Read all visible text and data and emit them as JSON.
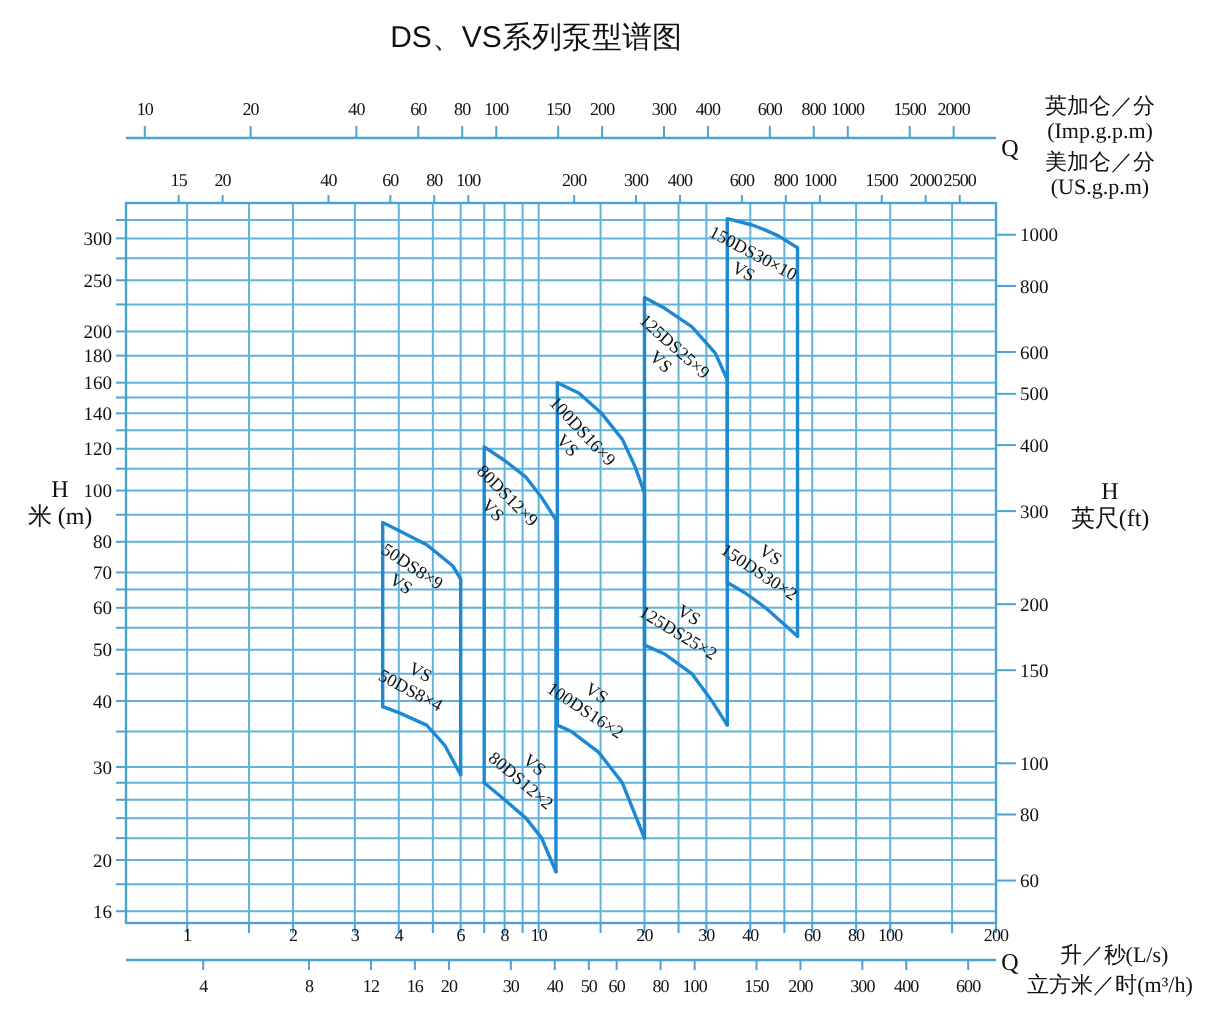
{
  "chart_data": {
    "type": "line",
    "title": "DS、VS系列泵型谱图",
    "xlabel": "升／秒(L/s)",
    "x2label": "美加仑／分\n(US.g.p.m)",
    "ylabel": "H\n米 (m)",
    "y2label": "H\n英尺(ft)",
    "log": "xy",
    "grid": true,
    "xlim": [
      0.67,
      200
    ],
    "xticks": [
      1,
      {
        "value": 1.5,
        "label": null
      },
      2,
      3,
      4,
      {
        "value": 5,
        "label": null
      },
      6,
      {
        "value": 7,
        "label": null
      },
      8,
      {
        "value": 9,
        "label": null
      },
      10,
      {
        "value": 15,
        "label": null
      },
      20,
      {
        "value": 25,
        "label": null
      },
      30,
      40,
      {
        "value": 50,
        "label": null
      },
      60,
      80,
      100,
      {
        "value": 150,
        "label": null
      },
      200
    ],
    "ylim": [
      15.2,
      350
    ],
    "yticks": [
      16,
      {
        "value": 18,
        "label": null
      },
      20,
      {
        "value": 22,
        "label": null
      },
      {
        "value": 24,
        "label": null
      },
      {
        "value": 26,
        "label": null
      },
      {
        "value": 28,
        "label": null
      },
      30,
      {
        "value": 35,
        "label": null
      },
      40,
      {
        "value": 45,
        "label": null
      },
      50,
      {
        "value": 55,
        "label": null
      },
      60,
      {
        "value": 65,
        "label": null
      },
      70,
      80,
      {
        "value": 90,
        "label": null
      },
      100,
      {
        "value": 110,
        "label": null
      },
      120,
      {
        "value": 130,
        "label": null
      },
      140,
      {
        "value": 150,
        "label": null
      },
      160,
      180,
      200,
      {
        "value": 225,
        "label": null
      },
      250,
      {
        "value": 275,
        "label": null
      },
      300,
      {
        "value": 325,
        "label": null
      }
    ],
    "series": [
      {
        "color": "#1e88d2",
        "x": [
          3.6,
          3.6,
          4.0,
          4.8,
          5.7,
          6.0,
          6.0
        ],
        "values": [
          39,
          87,
          84,
          79,
          72,
          68,
          29
        ]
      },
      {
        "color": "#1e88d2",
        "x": [
          3.6,
          4.0,
          4.8,
          5.4,
          6.0
        ],
        "values": [
          39,
          38,
          36,
          33,
          29
        ]
      },
      {
        "color": "#1e88d2",
        "x": [
          7.0,
          7.0,
          8.0,
          9.2,
          10.2,
          11.2,
          11.2
        ],
        "values": [
          28,
          121,
          114,
          106,
          97,
          88,
          19
        ]
      },
      {
        "color": "#1e88d2",
        "x": [
          7.0,
          8.0,
          9.2,
          10.2,
          11.2
        ],
        "values": [
          28,
          26,
          24,
          22,
          19
        ]
      },
      {
        "color": "#1e88d2",
        "x": [
          11.3,
          11.3,
          13.0,
          15.1,
          17.3,
          18.8,
          20,
          20
        ],
        "values": [
          36,
          160,
          153,
          140,
          125,
          111,
          99,
          22
        ]
      },
      {
        "color": "#1e88d2",
        "x": [
          11.3,
          12.4,
          14.8,
          17.3,
          20
        ],
        "values": [
          36,
          35,
          32,
          28,
          22
        ]
      },
      {
        "color": "#1e88d2",
        "x": [
          20,
          20,
          22.9,
          27.3,
          31.8,
          34.4,
          34.4
        ],
        "values": [
          51,
          232,
          221,
          204,
          182,
          162,
          36
        ]
      },
      {
        "color": "#1e88d2",
        "x": [
          20,
          22.9,
          27.3,
          31.1,
          34.4
        ],
        "values": [
          51,
          49,
          45,
          40,
          36
        ]
      },
      {
        "color": "#1e88d2",
        "x": [
          34.4,
          34.4,
          40.5,
          44.2,
          48.2,
          54.5,
          54.5
        ],
        "values": [
          67,
          327,
          318,
          311,
          303,
          288,
          53
        ]
      },
      {
        "color": "#1e88d2",
        "x": [
          34.4,
          38.7,
          44.2,
          54.5
        ],
        "values": [
          67,
          64,
          60,
          53
        ]
      }
    ],
    "annotations": [
      "10",
      "20",
      "40",
      "60",
      "80",
      "100",
      "150",
      "200",
      "300",
      "400",
      "600",
      "800",
      "1000",
      "1500",
      "2000",
      "英加仑／分\n(Imp.g.p.m)",
      "Q",
      "15",
      "20",
      "40",
      "60",
      "80",
      "100",
      "200",
      "300",
      "400",
      "600",
      "800",
      "1000",
      "1500",
      "2000",
      "2500",
      "60",
      "80",
      "100",
      "150",
      "200",
      "300",
      "400",
      "500",
      "600",
      "800",
      "1000",
      "Q",
      "4",
      "8",
      "12",
      "16",
      "20",
      "30",
      "40",
      "50",
      "60",
      "80",
      "100",
      "150",
      "200",
      "300",
      "400",
      "600",
      "立方米／时(m³/h)",
      {
        "text": "50DS8×9 VS",
        "x": 4.8,
        "y": 79
      },
      {
        "text": "VS 50DS8×4",
        "x": 4.0,
        "y": 38
      },
      {
        "text": "80DS12×9 VS",
        "x": 9.2,
        "y": 106
      },
      {
        "text": "VS 80DS12×2",
        "x": 8.0,
        "y": 26
      },
      {
        "text": "100DS16×9 VS",
        "x": 15.1,
        "y": 140
      },
      {
        "text": "VS 100DS16×2",
        "x": 12.4,
        "y": 35
      },
      {
        "text": "125DS25×9 VS",
        "x": 27.3,
        "y": 204
      },
      {
        "text": "VS 125DS25×2",
        "x": 22.9,
        "y": 49
      },
      {
        "text": "150DS30×10 VS",
        "x": 44.2,
        "y": 311
      },
      {
        "text": "VS 150DS30×2",
        "x": 38.7,
        "y": 64
      }
    ]
  }
}
